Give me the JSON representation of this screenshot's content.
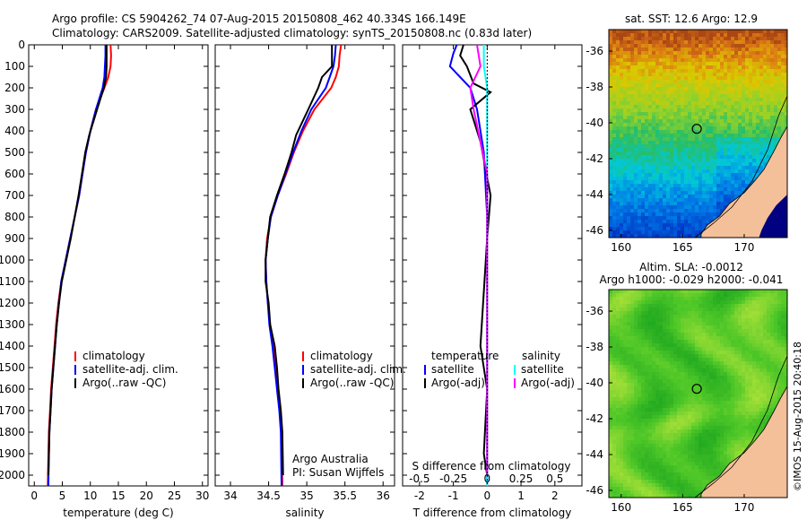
{
  "header": {
    "line1": "Argo profile: CS 5904262_74 07-Aug-2015 20150808_462 40.334S 166.149E",
    "line2": "Climatology: CARS2009. Satellite-adjusted climatology: synTS_20150808.nc (0.83d later)"
  },
  "colors": {
    "climatology": "#ff0000",
    "satellite": "#0000ff",
    "argo": "#000000",
    "sal_satellite": "#00ffff",
    "sal_argo": "#ff00ff",
    "land": "#f4c09a"
  },
  "chart_data": [
    {
      "type": "line",
      "name": "temperature-profile",
      "xlabel": "temperature (deg C)",
      "ylabel": "",
      "xlim": [
        -1,
        31
      ],
      "ylim": [
        2050,
        0
      ],
      "xticks": [
        0,
        5,
        10,
        15,
        20,
        25,
        30
      ],
      "yticks": [
        0,
        100,
        200,
        300,
        400,
        500,
        600,
        700,
        800,
        900,
        1000,
        1100,
        1200,
        1300,
        1400,
        1500,
        1600,
        1700,
        1800,
        1900,
        2000
      ],
      "legend": [
        "climatology",
        "satellite-adj. clim.",
        "Argo(..raw -QC)"
      ],
      "series": [
        {
          "name": "climatology",
          "color": "#ff0000",
          "x": [
            13.6,
            13.7,
            13.6,
            13.2,
            12.5,
            11.0,
            10.0,
            9.2,
            8.6,
            8.0,
            7.2,
            6.4,
            5.6,
            4.8,
            4.3,
            3.9,
            3.6,
            3.3,
            3.0,
            2.8,
            2.6,
            2.4
          ],
          "y": [
            0,
            50,
            100,
            150,
            200,
            300,
            400,
            500,
            600,
            700,
            800,
            900,
            1000,
            1100,
            1200,
            1300,
            1400,
            1500,
            1600,
            1700,
            1800,
            2050
          ]
        },
        {
          "name": "satellite-adj. clim.",
          "color": "#0000ff",
          "x": [
            12.7,
            12.7,
            12.6,
            12.5,
            12.2,
            11.0,
            10.0,
            9.2,
            8.6,
            8.0,
            7.2,
            6.4,
            5.6,
            4.8,
            4.4,
            4.0,
            3.7,
            3.4,
            3.1,
            2.9,
            2.7,
            2.5
          ],
          "y": [
            0,
            50,
            100,
            150,
            200,
            300,
            400,
            500,
            600,
            700,
            800,
            900,
            1000,
            1100,
            1200,
            1300,
            1400,
            1500,
            1600,
            1700,
            1800,
            2050
          ]
        },
        {
          "name": "Argo(..raw -QC)",
          "color": "#000000",
          "x": [
            12.9,
            12.9,
            12.9,
            12.8,
            12.4,
            11.2,
            9.8,
            9.1,
            8.5,
            7.9,
            7.2,
            6.5,
            5.7,
            4.9,
            4.4,
            4.0,
            3.7,
            3.4,
            3.1,
            2.9,
            2.7,
            2.5
          ],
          "y": [
            0,
            50,
            100,
            150,
            200,
            300,
            420,
            500,
            600,
            700,
            800,
            900,
            1000,
            1100,
            1200,
            1300,
            1400,
            1500,
            1600,
            1700,
            1800,
            2000
          ]
        }
      ]
    },
    {
      "type": "line",
      "name": "salinity-profile",
      "xlabel": "salinity",
      "ylabel": "",
      "xlim": [
        33.8,
        36.15
      ],
      "ylim": [
        2050,
        0
      ],
      "xticks": [
        34,
        34.5,
        35,
        35.5,
        36
      ],
      "legend": [
        "climatology",
        "satellite-adj. clim.",
        "Argo(..raw -QC)"
      ],
      "annotations": [
        "Argo Australia",
        "PI: Susan Wijffels"
      ],
      "series": [
        {
          "name": "climatology",
          "color": "#ff0000",
          "x": [
            35.45,
            35.43,
            35.42,
            35.38,
            35.32,
            35.1,
            34.95,
            34.83,
            34.73,
            34.62,
            34.53,
            34.48,
            34.46,
            34.47,
            34.49,
            34.52,
            34.56,
            34.59,
            34.62,
            34.65,
            34.67,
            34.68
          ],
          "y": [
            0,
            50,
            100,
            150,
            200,
            300,
            400,
            500,
            600,
            700,
            800,
            900,
            1000,
            1100,
            1200,
            1300,
            1400,
            1500,
            1600,
            1700,
            1800,
            2050
          ]
        },
        {
          "name": "satellite-adj. clim.",
          "color": "#0000ff",
          "x": [
            35.38,
            35.37,
            35.35,
            35.3,
            35.25,
            35.06,
            34.93,
            34.82,
            34.72,
            34.62,
            34.53,
            34.49,
            34.46,
            34.47,
            34.49,
            34.51,
            34.55,
            34.58,
            34.61,
            34.64,
            34.66,
            34.67
          ],
          "y": [
            0,
            50,
            100,
            150,
            200,
            300,
            400,
            500,
            600,
            700,
            800,
            900,
            1000,
            1100,
            1200,
            1300,
            1400,
            1500,
            1600,
            1700,
            1800,
            2050
          ]
        },
        {
          "name": "Argo(..raw -QC)",
          "color": "#000000",
          "x": [
            35.33,
            35.33,
            35.33,
            35.2,
            35.15,
            35.02,
            34.86,
            34.8,
            34.71,
            34.61,
            34.52,
            34.49,
            34.46,
            34.46,
            34.5,
            34.52,
            34.58,
            34.61,
            34.63,
            34.66,
            34.68,
            34.69
          ],
          "y": [
            0,
            50,
            100,
            150,
            200,
            300,
            420,
            500,
            600,
            700,
            800,
            900,
            1000,
            1100,
            1200,
            1300,
            1400,
            1500,
            1600,
            1700,
            1800,
            2000
          ]
        }
      ]
    },
    {
      "type": "line",
      "name": "difference-profile",
      "xlabel": "T difference from climatology",
      "xlabel_secondary": "S difference from climatology",
      "xlim": [
        -2.5,
        2.8
      ],
      "ylim": [
        2050,
        0
      ],
      "xticks": [
        -2,
        -1,
        0,
        1,
        2
      ],
      "secondary_ticks": [
        "-0.5",
        "-0.25",
        "0",
        "0.25",
        "0.5"
      ],
      "legend": {
        "temperature_heading": "temperature",
        "salinity_heading": "salinity",
        "entries": [
          "satellite",
          "Argo(-adj)",
          "satellite",
          "Argo(-adj)"
        ]
      },
      "series": [
        {
          "name": "temperature satellite",
          "color": "#0000ff",
          "x": [
            -0.9,
            -1.0,
            -1.1,
            -0.8,
            -0.5,
            -0.3,
            -0.1,
            0.0,
            0.0,
            0.0,
            0.0,
            0.0
          ],
          "y": [
            0,
            40,
            100,
            150,
            200,
            300,
            500,
            800,
            1200,
            1500,
            1800,
            2050
          ]
        },
        {
          "name": "temperature Argo(-adj)",
          "color": "#000000",
          "x": [
            -0.7,
            -0.8,
            -0.6,
            -0.4,
            0.1,
            -0.5,
            -0.2,
            0.1,
            0.0,
            -0.2,
            0.0,
            -0.1,
            0.0
          ],
          "y": [
            0,
            50,
            100,
            180,
            220,
            300,
            450,
            700,
            900,
            1400,
            1600,
            1900,
            2000
          ]
        },
        {
          "name": "salinity satellite",
          "color": "#00ffff",
          "x": [
            -0.1,
            -0.1,
            0.0,
            0.0,
            0.0,
            0.0,
            0.0,
            0.0
          ],
          "y": [
            0,
            100,
            200,
            500,
            900,
            1300,
            1700,
            2050
          ]
        },
        {
          "name": "salinity Argo(-adj)",
          "color": "#ff00ff",
          "x": [
            -0.3,
            -0.2,
            -0.5,
            -0.4,
            -0.2,
            0.0,
            0.0,
            0.0
          ],
          "y": [
            0,
            100,
            200,
            300,
            450,
            600,
            1000,
            2000
          ]
        }
      ]
    },
    {
      "type": "heatmap",
      "name": "sst-map",
      "title": "sat. SST: 12.6  Argo: 12.9",
      "xlim": [
        159,
        173.5
      ],
      "ylim": [
        -46.4,
        -34.8
      ],
      "xticks": [
        160,
        165,
        170
      ],
      "yticks": [
        -36,
        -38,
        -40,
        -42,
        -44,
        -46
      ],
      "marker": {
        "lon": 166.149,
        "lat": -40.334
      }
    },
    {
      "type": "heatmap",
      "name": "sla-map",
      "title": "Altim. SLA: -0.0012",
      "subtitle": "Argo h1000: -0.029 h2000: -0.041",
      "xlim": [
        159,
        173.5
      ],
      "ylim": [
        -46.4,
        -34.8
      ],
      "xticks": [
        160,
        165,
        170
      ],
      "yticks": [
        -36,
        -38,
        -40,
        -42,
        -44,
        -46
      ],
      "marker": {
        "lon": 166.149,
        "lat": -40.334
      }
    }
  ],
  "stamp": "©IMOS 15-Aug-2015 20:40:18"
}
